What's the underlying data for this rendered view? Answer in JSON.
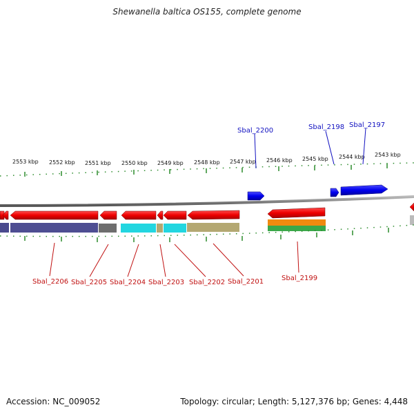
{
  "title": "Shewanella baltica OS155, complete genome",
  "footer": {
    "accession": "Accession: NC_009052",
    "stats": "Topology: circular; Length: 5,127,376 bp; Genes: 4,448"
  },
  "kbp_labels": [
    "2553 kbp",
    "2552 kbp",
    "2551 kbp",
    "2550 kbp",
    "2549 kbp",
    "2548 kbp",
    "2547 kbp",
    "2546 kbp",
    "2545 kbp",
    "2544 kbp",
    "2543 kbp"
  ],
  "genes_top": [
    "Sbal_2200",
    "Sbal_2198",
    "Sbal_2197"
  ],
  "genes_bottom": [
    "Sbal_2206",
    "Sbal_2205",
    "Sbal_2204",
    "Sbal_2203",
    "Sbal_2202",
    "Sbal_2201",
    "Sbal_2199"
  ],
  "colors": {
    "forward_gene": "#0000ee",
    "reverse_gene": "#ee0000",
    "backbone": "#888888",
    "tick": "#2a8a2a",
    "label_top": "#1010c0",
    "label_bottom": "#c01010"
  }
}
